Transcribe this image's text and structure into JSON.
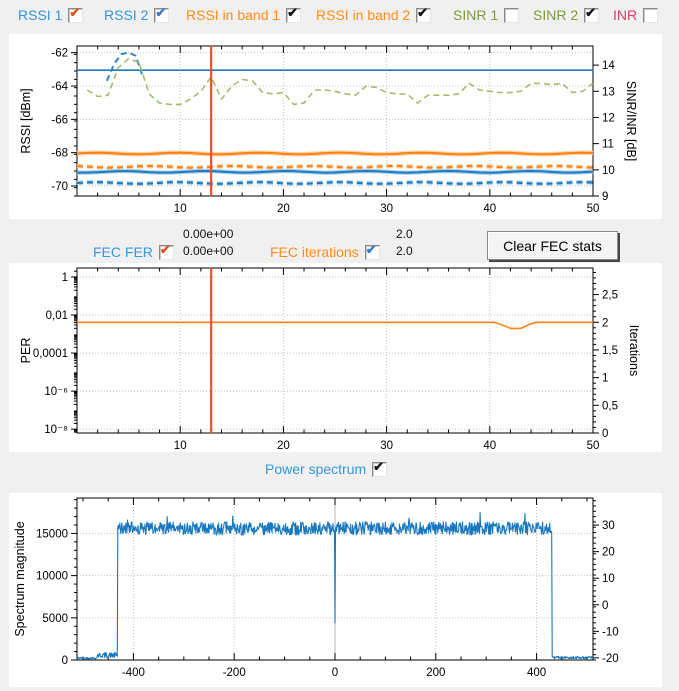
{
  "app": {
    "background": "#f0f0f0",
    "panel_color": "#ffffff"
  },
  "colors": {
    "label_blue": "#3596d9",
    "label_orange": "#ff8c1a",
    "label_green": "#7f9a36",
    "label_pink": "#e23864",
    "line_blue": "#1c7ac0",
    "line_blue_halo": "#a9d0ea",
    "line_orange": "#ff8214",
    "line_orange_halo": "#ffd2a6",
    "line_green": "#a3bc6d",
    "cursor_line": "#e8502c",
    "spectrum_blue": "#1878bf",
    "grid": "#c2c2c2",
    "zero_line": "#b4b4b4"
  },
  "top_controls": {
    "items": [
      {
        "label": "RSSI 1",
        "checked": true,
        "check_color": "orange",
        "label_color": "blue"
      },
      {
        "label": "RSSI 2",
        "checked": true,
        "check_color": "blue",
        "label_color": "blue"
      },
      {
        "label": "RSSI in band 1",
        "checked": true,
        "check_color": "black",
        "label_color": "orange"
      },
      {
        "label": "RSSI in band 2",
        "checked": true,
        "check_color": "black",
        "label_color": "orange"
      },
      {
        "label": "SINR 1",
        "checked": false,
        "check_color": "black",
        "label_color": "green"
      },
      {
        "label": "SINR 2",
        "checked": true,
        "check_color": "black",
        "label_color": "green"
      },
      {
        "label": "INR",
        "checked": false,
        "check_color": "black",
        "label_color": "pink"
      }
    ]
  },
  "fec_header": {
    "fer_label": "FEC FER",
    "fer_checked": true,
    "fer_value_top": "0.00e+00",
    "fer_value_bottom": "0.00e+00",
    "iter_label": "FEC iterations",
    "iter_checked": true,
    "iter_value_top": "2.0",
    "iter_value_bottom": "2.0",
    "clear_button": "Clear FEC stats"
  },
  "spectrum_header": {
    "label": "Power spectrum",
    "checked": true
  },
  "chart_data": [
    {
      "id": "rssi",
      "type": "line",
      "x_range": [
        0,
        50
      ],
      "x_ticks": [
        10,
        20,
        30,
        40,
        50
      ],
      "x_minor_step": 2,
      "y_left": {
        "label": "RSSI [dBm]",
        "range": [
          -70.6,
          -61.6
        ],
        "ticks": [
          -62,
          -64,
          -66,
          -68,
          -70
        ],
        "tick_labels": [
          "-62",
          "-64",
          "-66",
          "-68",
          "-70"
        ],
        "minor_step": 0.5
      },
      "y_right": {
        "label": "SINR/INR [dB]",
        "range": [
          9,
          14.73
        ],
        "ticks": [
          9,
          10,
          11,
          12,
          13,
          14
        ],
        "tick_labels": [
          "9",
          "10",
          "11",
          "12",
          "13",
          "14"
        ]
      },
      "cursor_x": 13,
      "series": [
        {
          "name": "rssi-1-blue-solid",
          "axis": "left",
          "style": "solid",
          "color": "#1c7ac0",
          "width": 1.7,
          "value": -63.05
        },
        {
          "name": "sinr-blue-dashed-segment",
          "axis": "right",
          "style": "dashed",
          "color": "#2e86c8",
          "width": 2,
          "x": [
            2.9,
            3.6,
            4.3,
            5.0,
            5.7,
            6.3
          ],
          "y": [
            13.4,
            14.05,
            14.42,
            14.48,
            14.35,
            13.65
          ]
        },
        {
          "name": "sinr-2-green-dashed",
          "axis": "right",
          "style": "dashed",
          "color": "#a3bc6d",
          "width": 1.6,
          "y": [
            13.05,
            12.8,
            12.85,
            13.9,
            14.25,
            14.1,
            12.9,
            12.55,
            12.5,
            12.5,
            12.7,
            13.0,
            13.55,
            12.7,
            13.2,
            13.45,
            13.4,
            12.95,
            12.9,
            12.95,
            12.5,
            12.55,
            13.05,
            13.05,
            13.0,
            12.9,
            12.85,
            13.2,
            13.15,
            12.95,
            12.9,
            12.9,
            12.55,
            12.85,
            12.85,
            12.85,
            12.9,
            13.3,
            13.05,
            13.0,
            12.95,
            12.95,
            13.0,
            13.3,
            13.3,
            13.25,
            13.3,
            12.95,
            13.0,
            13.3
          ]
        },
        {
          "name": "rssi-in-band-1-orange-solid",
          "axis": "left",
          "style": "solid",
          "color": "#ff8214",
          "halo": "#ffd2a6",
          "width": 2.1,
          "value": -68.05,
          "wiggle": 0.05
        },
        {
          "name": "rssi-in-band-2-orange-dashed",
          "axis": "left",
          "style": "dashed",
          "color": "#ff8214",
          "halo": "#ffd2a6",
          "width": 2.1,
          "value": -68.85,
          "wiggle": 0.05
        },
        {
          "name": "rssi-blue-solid-low",
          "axis": "left",
          "style": "solid",
          "color": "#1c7ac0",
          "halo": "#a9d0ea",
          "width": 2.0,
          "value": -69.15,
          "wiggle": 0.05
        },
        {
          "name": "rssi-2-blue-dashed-low",
          "axis": "left",
          "style": "dashed",
          "color": "#1c7ac0",
          "halo": "#a9d0ea",
          "width": 2.1,
          "value": -69.82,
          "wiggle": 0.05
        }
      ]
    },
    {
      "id": "fec",
      "type": "line",
      "x_range": [
        0,
        50
      ],
      "x_ticks": [
        10,
        20,
        30,
        40,
        50
      ],
      "x_minor_step": 2,
      "y_left": {
        "label": "PER",
        "log": true,
        "range_exp": [
          -8.2,
          0.47
        ],
        "ticks_exp": [
          0,
          -2,
          -4,
          -6,
          -8
        ],
        "tick_labels": [
          "1",
          "0,01",
          "0,0001",
          "10⁻⁶",
          "10⁻⁸"
        ]
      },
      "y_right": {
        "label": "Iterations",
        "range": [
          0,
          2.98
        ],
        "ticks": [
          0,
          0.5,
          1,
          1.5,
          2,
          2.5
        ],
        "tick_labels": [
          "0",
          "0,5",
          "1",
          "1,5",
          "2",
          "2,5"
        ],
        "minor_step": 0.1
      },
      "cursor_x": 13,
      "series": [
        {
          "name": "fec-iterations-orange",
          "axis": "right",
          "style": "solid",
          "color": "#ff8214",
          "width": 1.6,
          "x": [
            0,
            40.4,
            41.2,
            42.0,
            43.0,
            43.8,
            44.5,
            50
          ],
          "y": [
            2,
            2,
            1.95,
            1.89,
            1.89,
            1.96,
            2,
            2
          ]
        }
      ]
    },
    {
      "id": "spectrum",
      "type": "line",
      "x_range": [
        -512,
        512
      ],
      "x_ticks": [
        -400,
        -200,
        0,
        200,
        400
      ],
      "x_minor_step": 50,
      "zero_x_line": true,
      "y_left": {
        "label": "Spectrum magnitude",
        "range": [
          0,
          19200
        ],
        "ticks": [
          0,
          5000,
          10000,
          15000
        ],
        "tick_labels": [
          "0",
          "5000",
          "10000",
          "15000"
        ],
        "minor_step": 1000
      },
      "y_right": {
        "label": "",
        "range": [
          -20.8,
          40.2
        ],
        "ticks": [
          -20,
          -10,
          0,
          10,
          20,
          30
        ],
        "tick_labels": [
          "-20",
          "-10",
          "0",
          "10",
          "20",
          "30"
        ],
        "minor_step": 2
      },
      "series": [
        {
          "name": "power-spectrum",
          "axis": "left",
          "style": "solid",
          "color": "#1878bf",
          "width": 1.1,
          "generate": {
            "seed": 42,
            "step": 1,
            "segments": [
              {
                "x0": -512,
                "x1": -473,
                "base": 230,
                "noise": 110
              },
              {
                "x0": -472,
                "x1": -432,
                "base": 560,
                "noise": 330
              },
              {
                "x0": -431,
                "x1": 430,
                "base": 15600,
                "noise": 780,
                "spike": 1600,
                "spike_p": 0.03
              },
              {
                "x0": 431,
                "x1": 512,
                "base": 290,
                "noise": 140
              }
            ],
            "notch": {
              "x": 0,
              "value": 4400
            }
          }
        }
      ]
    }
  ]
}
